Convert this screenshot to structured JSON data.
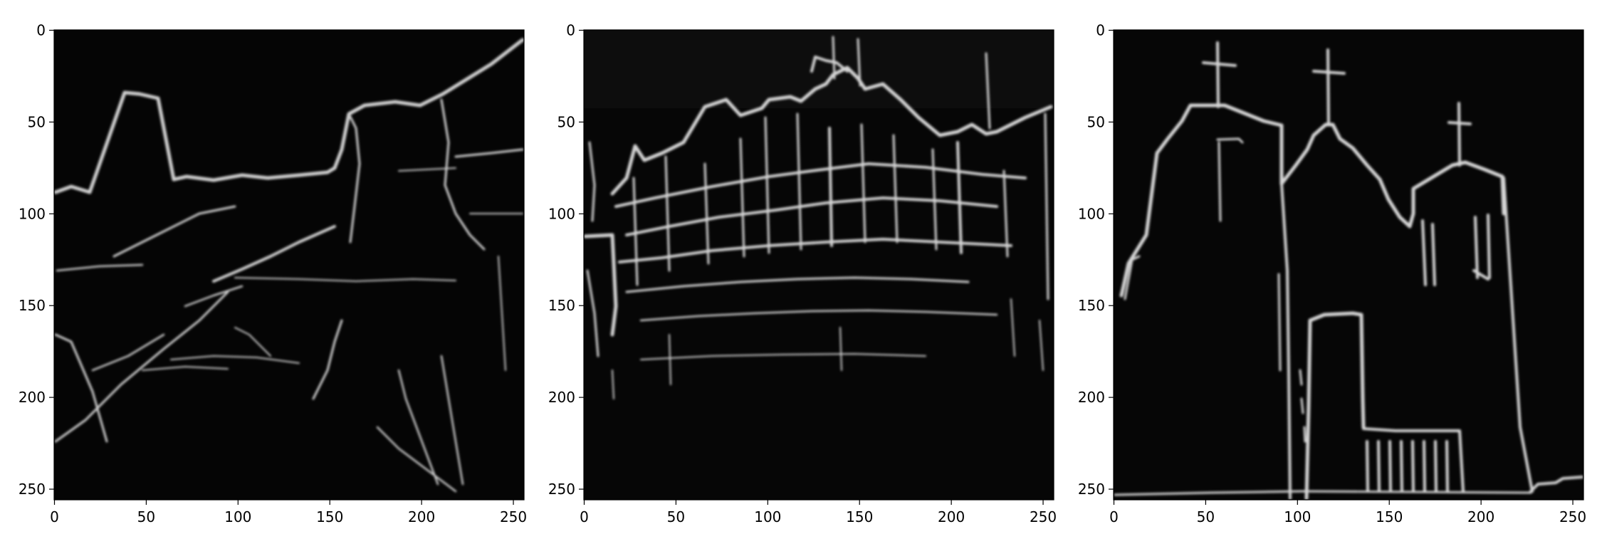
{
  "figure": {
    "panels": [
      {
        "id": "panel-1",
        "subject": "edge map of coastal scene with mountain peak and trees",
        "x_ticks": [
          "0",
          "50",
          "100",
          "150",
          "200",
          "250"
        ],
        "y_ticks": [
          "0",
          "50",
          "100",
          "150",
          "200",
          "250"
        ]
      },
      {
        "id": "panel-2",
        "subject": "edge map of large multi-storey building facade",
        "x_ticks": [
          "0",
          "50",
          "100",
          "150",
          "200",
          "250"
        ],
        "y_ticks": [
          "0",
          "50",
          "100",
          "150",
          "200",
          "250"
        ]
      },
      {
        "id": "panel-3",
        "subject": "edge map of church with three crosses",
        "x_ticks": [
          "0",
          "50",
          "100",
          "150",
          "200",
          "250"
        ],
        "y_ticks": [
          "0",
          "50",
          "100",
          "150",
          "200",
          "250"
        ]
      }
    ],
    "colors": {
      "image_background": "#050505",
      "edge_stroke": "#d8d8d8",
      "axis": "#000000"
    }
  }
}
